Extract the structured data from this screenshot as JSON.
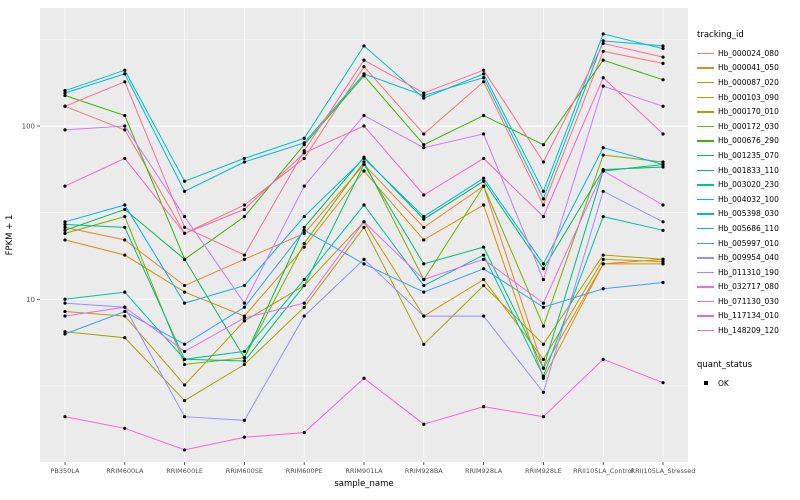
{
  "chart": {
    "xlabel": "sample_name",
    "ylabel": "FPKM + 1",
    "legend_title": "tracking_id",
    "quant_legend_title": "quant_status",
    "quant_ok_label": "OK"
  },
  "chart_data": {
    "type": "line",
    "title": "",
    "xlabel": "sample_name",
    "ylabel": "FPKM + 1",
    "log_y": true,
    "ylim": [
      1.15,
      480
    ],
    "y_major_ticks": [
      10,
      100
    ],
    "y_minor_ticks": [
      3.162,
      31.62,
      316.2
    ],
    "panel_bg": "#EBEBEB",
    "grid_color": "#FFFFFF",
    "point_color": "#000000",
    "legend_position": "right",
    "categories": [
      "PB350LA",
      "RRIM600LA",
      "RRIM600LE",
      "RRIM600SE",
      "RRIM600PE",
      "RRIM901LA",
      "RRIM928BA",
      "RRIM928LA",
      "RRIM928LE",
      "RRII105LA_Control",
      "RRII105LA_Stressed"
    ],
    "series": [
      {
        "name": "Hb_000024_080",
        "color": "#F8766D",
        "values": [
          130,
          95,
          24,
          35,
          65,
          220,
          90,
          180,
          35,
          270,
          230
        ]
      },
      {
        "name": "Hb_000041_050",
        "color": "#EA8331",
        "values": [
          26,
          22,
          12,
          17,
          24,
          60,
          26,
          45,
          4,
          16,
          17
        ]
      },
      {
        "name": "Hb_000087_020",
        "color": "#D89000",
        "values": [
          22,
          18,
          11,
          8,
          20,
          55,
          22,
          35,
          3.5,
          16,
          16
        ]
      },
      {
        "name": "Hb_000103_090",
        "color": "#C09B00",
        "values": [
          8.5,
          8,
          3.2,
          7.5,
          12,
          28,
          8,
          13,
          4.5,
          17,
          16.5
        ]
      },
      {
        "name": "Hb_000170_010",
        "color": "#A3A500",
        "values": [
          6.5,
          6,
          2.6,
          4.2,
          9,
          26,
          5.5,
          12,
          5.5,
          18,
          17
        ]
      },
      {
        "name": "Hb_000172_030",
        "color": "#7CAE00",
        "values": [
          24,
          30,
          4.2,
          4.6,
          21,
          62,
          13,
          45,
          7,
          68,
          62
        ]
      },
      {
        "name": "Hb_000676_290",
        "color": "#39B600",
        "values": [
          150,
          115,
          17,
          30,
          78,
          195,
          78,
          115,
          78,
          240,
          185
        ]
      },
      {
        "name": "Hb_001235_070",
        "color": "#00BB4E",
        "values": [
          25,
          33,
          17,
          4.6,
          26,
          66,
          29,
          48,
          15,
          56,
          58
        ]
      },
      {
        "name": "Hb_001833_110",
        "color": "#00BF7D",
        "values": [
          27,
          26,
          4.5,
          4.4,
          12,
          60,
          16,
          20,
          4,
          55,
          60
        ]
      },
      {
        "name": "Hb_003020_230",
        "color": "#00C1A3",
        "values": [
          10,
          11,
          4.5,
          5,
          13,
          35,
          12,
          18,
          3.6,
          30,
          25
        ]
      },
      {
        "name": "Hb_004032_100",
        "color": "#00BFC4",
        "values": [
          160,
          210,
          48,
          65,
          85,
          290,
          145,
          200,
          42,
          340,
          280
        ]
      },
      {
        "name": "Hb_005398_030",
        "color": "#00BAE0",
        "values": [
          155,
          200,
          42,
          62,
          80,
          200,
          150,
          190,
          38,
          310,
          290
        ]
      },
      {
        "name": "Hb_005686_110",
        "color": "#00B0F6",
        "values": [
          28,
          35,
          9.5,
          12,
          30,
          65,
          30,
          50,
          16,
          75,
          60
        ]
      },
      {
        "name": "Hb_005997_010",
        "color": "#35A2FF",
        "values": [
          6.3,
          8.5,
          5.5,
          9,
          25,
          16,
          11,
          15,
          9,
          11.5,
          12.5
        ]
      },
      {
        "name": "Hb_009954_040",
        "color": "#9590FF",
        "values": [
          9.5,
          9,
          2.1,
          2.0,
          8,
          17,
          8,
          8,
          2.9,
          42,
          28
        ]
      },
      {
        "name": "Hb_011310_190",
        "color": "#C77CFF",
        "values": [
          95,
          100,
          30,
          9.5,
          45,
          115,
          75,
          90,
          13,
          170,
          130
        ]
      },
      {
        "name": "Hb_032717_080",
        "color": "#E76BF3",
        "values": [
          8,
          9,
          5,
          7.8,
          9.5,
          28,
          13,
          17,
          9.5,
          55,
          35
        ]
      },
      {
        "name": "Hb_071130_030",
        "color": "#FA62DB",
        "values": [
          2.1,
          1.8,
          1.35,
          1.6,
          1.7,
          3.5,
          1.9,
          2.4,
          2.1,
          4.5,
          3.3
        ]
      },
      {
        "name": "Hb_117134_010",
        "color": "#FF62BC",
        "values": [
          45,
          65,
          24,
          33,
          70,
          100,
          40,
          65,
          30,
          190,
          90
        ]
      },
      {
        "name": "Hb_148209_120",
        "color": "#FF6A98",
        "values": [
          130,
          180,
          26,
          18,
          72,
          240,
          155,
          210,
          62,
          300,
          250
        ]
      }
    ],
    "quant_status": {
      "label": "OK",
      "marker": "point",
      "color": "#000000"
    }
  }
}
